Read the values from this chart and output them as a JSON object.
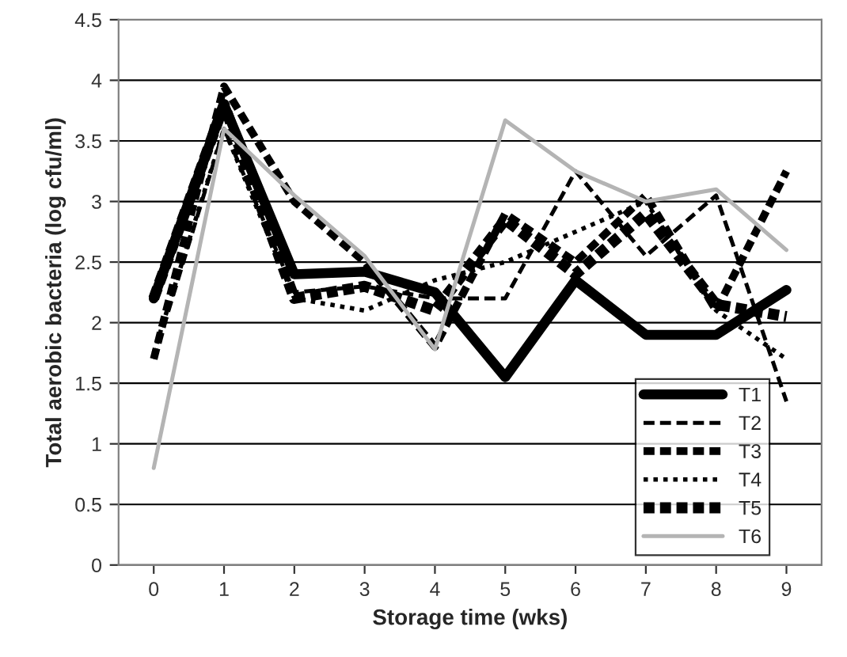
{
  "chart_data": {
    "type": "line",
    "xlabel": "Storage time (wks)",
    "ylabel": "Total aerobic bacteria (log cfu/ml)",
    "categories": [
      "0",
      "1",
      "2",
      "3",
      "4",
      "5",
      "6",
      "7",
      "8",
      "9"
    ],
    "ylim": [
      0,
      4.5
    ],
    "yticks": [
      0,
      0.5,
      1,
      1.5,
      2,
      2.5,
      3,
      3.5,
      4,
      4.5
    ],
    "grid": "y",
    "legend": "bottom right",
    "marker": "none",
    "series": [
      {
        "name": "T1",
        "color": "#000000",
        "line_style": "solid",
        "values": [
          2.2,
          3.8,
          2.4,
          2.42,
          2.25,
          1.55,
          2.35,
          1.9,
          1.9,
          2.27
        ]
      },
      {
        "name": "T2",
        "color": "#000000",
        "line_style": "dashed",
        "values": [
          1.7,
          3.6,
          2.25,
          2.3,
          2.2,
          2.2,
          3.25,
          2.55,
          3.05,
          1.35
        ]
      },
      {
        "name": "T3",
        "color": "#000000",
        "line_style": "dashed",
        "values": [
          1.7,
          3.95,
          3.0,
          2.5,
          1.8,
          2.9,
          2.5,
          3.05,
          2.1,
          3.25
        ]
      },
      {
        "name": "T4",
        "color": "#000000",
        "line_style": "dotted",
        "values": [
          1.75,
          3.6,
          2.2,
          2.1,
          2.35,
          2.5,
          2.75,
          3.0,
          2.1,
          1.7
        ]
      },
      {
        "name": "T5",
        "color": "#000000",
        "line_style": "dashed",
        "values": [
          2.2,
          3.8,
          2.2,
          2.3,
          2.1,
          2.85,
          2.4,
          2.9,
          2.15,
          2.05
        ]
      },
      {
        "name": "T6",
        "color": "#b4b4b4",
        "line_style": "solid",
        "values": [
          0.8,
          3.6,
          3.05,
          2.55,
          1.78,
          3.67,
          3.25,
          3.0,
          3.1,
          2.6
        ]
      }
    ]
  }
}
